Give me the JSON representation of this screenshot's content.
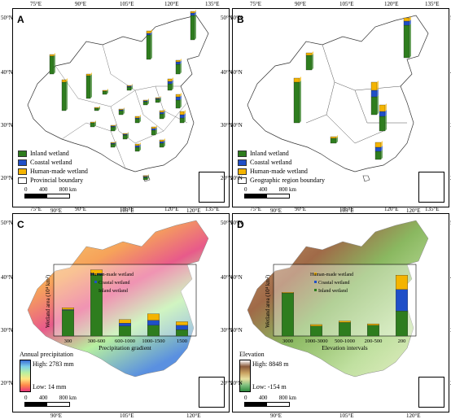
{
  "legend_categories": {
    "inland": "Inland wetland",
    "coastal": "Coastal wetland",
    "human": "Human-made wetland"
  },
  "colors": {
    "inland": "#2e7d1e",
    "coastal": "#1f4fc8",
    "human": "#f4b400"
  },
  "scale": {
    "labels": [
      "0",
      "400",
      "800 km"
    ]
  },
  "panels": {
    "A": {
      "label": "A",
      "boundary_label": "Provincial boundary",
      "top_lon": [
        "75°E",
        "90°E",
        "105°E",
        "120°E",
        "135°E"
      ],
      "bottom_lon": [
        "90°E",
        "105°E",
        "120°E"
      ],
      "left_lat": [
        "50°N",
        "40°N",
        "30°N",
        "20°N"
      ],
      "right_lat": [
        "50°N",
        "40°N",
        "30°N",
        "20°N"
      ]
    },
    "B": {
      "label": "B",
      "boundary_label": "Geographic region boundary",
      "top_lon": [
        "75°E",
        "90°E",
        "105°E",
        "120°E",
        "135°E"
      ],
      "bottom_lon": [
        "90°E",
        "105°E",
        "120°E"
      ],
      "left_lat": [
        "50°N",
        "40°N",
        "30°N",
        "20°N"
      ],
      "right_lat": [
        "50°N",
        "40°N",
        "30°N",
        "20°N"
      ]
    },
    "C": {
      "label": "C",
      "top_lon": [
        "75°E",
        "90°E",
        "105°E",
        "120°E",
        "135°E"
      ],
      "bottom_lon": [
        "90°E",
        "105°E",
        "120°E"
      ],
      "left_lat": [
        "50°N",
        "40°N",
        "30°N",
        "20°N"
      ],
      "right_lat": [
        "50°N",
        "40°N",
        "30°N",
        "20°N"
      ],
      "colorbar_title": "Annual precipitation",
      "colorbar_high": "High: 2783 mm",
      "colorbar_low": "Low: 14 mm",
      "colorbar_colors": [
        "#3a6fd8",
        "#7fd0e8",
        "#b8f0a0",
        "#ffe680",
        "#ff8a4a",
        "#e8357a"
      ]
    },
    "D": {
      "label": "D",
      "top_lon": [
        "75°E",
        "90°E",
        "105°E",
        "120°E",
        "135°E"
      ],
      "bottom_lon": [
        "90°E",
        "105°E",
        "120°E"
      ],
      "left_lat": [
        "50°N",
        "40°N",
        "30°N",
        "20°N"
      ],
      "right_lat": [
        "50°N",
        "40°N",
        "30°N",
        "20°N"
      ],
      "colorbar_title": "Elevation",
      "colorbar_high": "High: 8848 m",
      "colorbar_low": "Low: -154 m",
      "colorbar_colors": [
        "#ffffff",
        "#8a5a3a",
        "#c8a060",
        "#e8e0a0",
        "#80c080",
        "#2e8a3e"
      ]
    }
  },
  "chart_data": [
    {
      "type": "bar",
      "panel": "C",
      "stacked": true,
      "categories": [
        "300",
        "300-600",
        "600-1000",
        "1000-1500",
        "1500"
      ],
      "xlabel": "Precipitation gradient",
      "ylabel": "Wetland area (10⁴ km²)",
      "ylim": [
        0,
        200
      ],
      "series": [
        {
          "name": "Inland wetland",
          "values": [
            72,
            172,
            28,
            30,
            18
          ]
        },
        {
          "name": "Coastal wetland",
          "values": [
            2,
            3,
            8,
            14,
            12
          ]
        },
        {
          "name": "Human-made wetland",
          "values": [
            5,
            10,
            10,
            18,
            10
          ]
        }
      ],
      "legend": [
        "Human-made wetland",
        "Coastal wetland",
        "Inland wetland"
      ]
    },
    {
      "type": "bar",
      "panel": "D",
      "stacked": true,
      "categories": [
        "3000",
        "1000-3000",
        "500-1000",
        "200-500",
        "200"
      ],
      "xlabel": "Elevation intervals",
      "ylabel": "Wetland area (10⁴ km²)",
      "ylim": [
        0,
        200
      ],
      "series": [
        {
          "name": "Inland wetland",
          "values": [
            120,
            28,
            38,
            30,
            70
          ]
        },
        {
          "name": "Coastal wetland",
          "values": [
            0,
            0,
            0,
            0,
            60
          ]
        },
        {
          "name": "Human-made wetland",
          "values": [
            2,
            4,
            4,
            4,
            40
          ]
        }
      ],
      "legend": [
        "Human-made wetland",
        "Coastal wetland",
        "Inland wetland"
      ]
    }
  ]
}
